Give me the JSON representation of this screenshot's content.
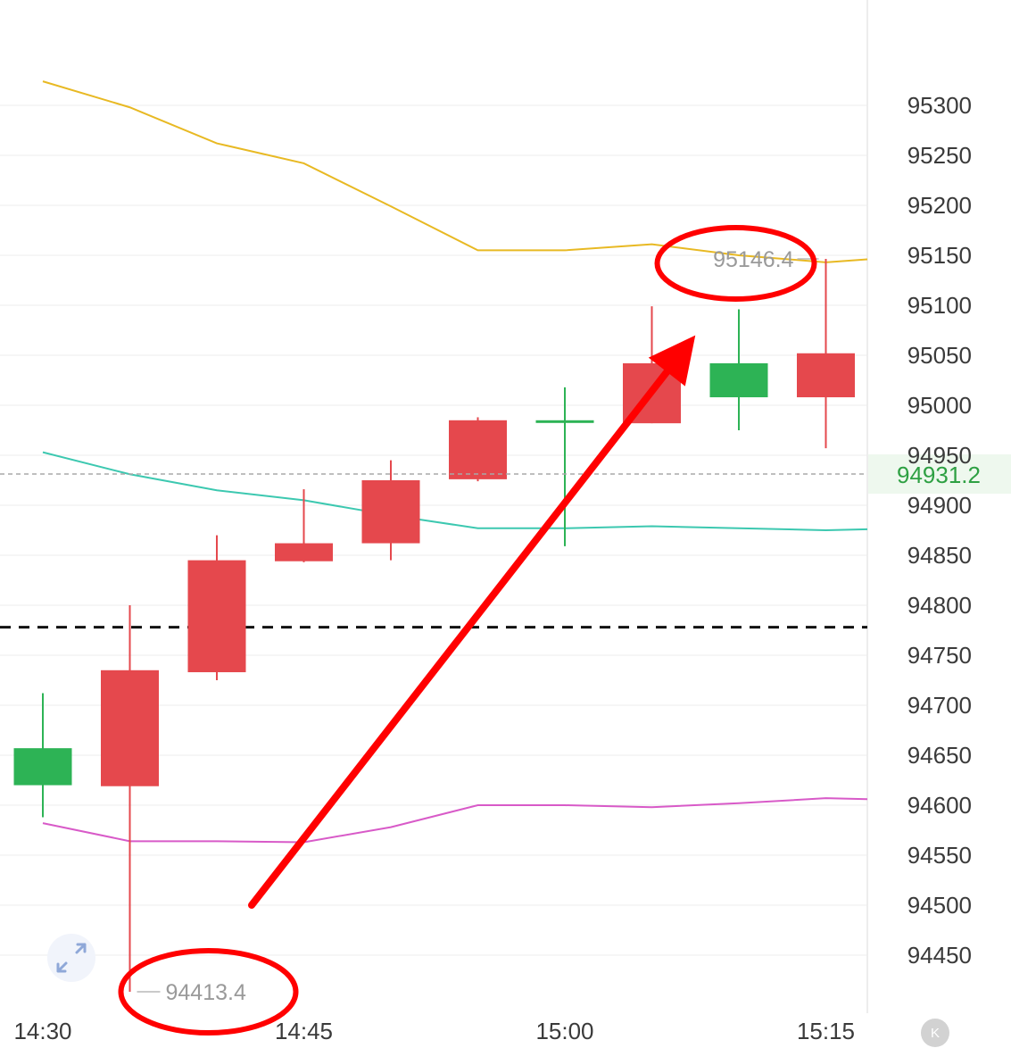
{
  "chart_data": {
    "type": "candlestick",
    "y_axis": {
      "ticks": [
        95300,
        95250,
        95200,
        95150,
        95100,
        95050,
        95000,
        94950,
        94900,
        94850,
        94800,
        94750,
        94700,
        94650,
        94600,
        94550,
        94500,
        94450
      ],
      "range": [
        94400,
        95360
      ],
      "position": "right",
      "grid": true
    },
    "x_axis": {
      "tick_labels": [
        "14:30",
        "14:45",
        "15:00",
        "15:15"
      ],
      "tick_candle_index": [
        0,
        3,
        6,
        9
      ]
    },
    "candles": [
      {
        "open": 94620,
        "high": 94712,
        "low": 94588,
        "close": 94657,
        "color": "green"
      },
      {
        "open": 94735,
        "high": 94800,
        "low": 94413.4,
        "close": 94619,
        "color": "red"
      },
      {
        "open": 94845,
        "high": 94870,
        "low": 94725,
        "close": 94733,
        "color": "red"
      },
      {
        "open": 94862,
        "high": 94916,
        "low": 94843,
        "close": 94844,
        "color": "red"
      },
      {
        "open": 94925,
        "high": 94945,
        "low": 94845,
        "close": 94862,
        "color": "red"
      },
      {
        "open": 94985,
        "high": 94988,
        "low": 94924,
        "close": 94926,
        "color": "red"
      },
      {
        "open": 94983,
        "high": 95018,
        "low": 94859,
        "close": 94985,
        "color": "green"
      },
      {
        "open": 95042,
        "high": 95099,
        "low": 94982,
        "close": 94982,
        "color": "red"
      },
      {
        "open": 95008,
        "high": 95096,
        "low": 94975,
        "close": 95042,
        "color": "green"
      },
      {
        "open": 95052,
        "high": 95146.4,
        "low": 94957,
        "close": 95008,
        "color": "red"
      }
    ],
    "ma_lines": [
      {
        "color": "#e8b923",
        "values": [
          95324,
          95298,
          95262,
          95242,
          95199,
          95155,
          95155,
          95161,
          95150,
          95143,
          95146
        ]
      },
      {
        "color": "#3cc8b0",
        "values": [
          94953,
          94931,
          94915,
          94905,
          94890,
          94877,
          94877,
          94879,
          94877,
          94875,
          94876
        ]
      },
      {
        "color": "#d85ac8",
        "values": [
          94582,
          94564,
          94564,
          94563,
          94578,
          94600,
          94600,
          94598,
          94602,
          94607,
          94606
        ]
      }
    ],
    "current_price": {
      "value": 94931.2,
      "label": "94931.2",
      "style": "dashed-gray"
    },
    "reference_line": {
      "value": 94778,
      "style": "dashed-black"
    },
    "annotations": {
      "high_label": "95146.4",
      "low_label": "94413.4"
    },
    "overlay": {
      "arrow_color": "#ff0000",
      "arrow_from": {
        "candle_index": 2.4,
        "value": 94500
      },
      "arrow_to": {
        "candle_index": 7.5,
        "value": 95070
      },
      "circles_around": [
        "high_label",
        "low_label"
      ]
    }
  },
  "colors": {
    "up": "#e5484d",
    "down": "#2db355",
    "grid": "#ececec",
    "axis_text": "#3a3a3a",
    "price_tag_bg": "#eef8ee",
    "price_tag_text": "#2ea043"
  },
  "controls": {
    "expand_icon": "expand-arrows-icon",
    "k_badge_label": "K"
  }
}
